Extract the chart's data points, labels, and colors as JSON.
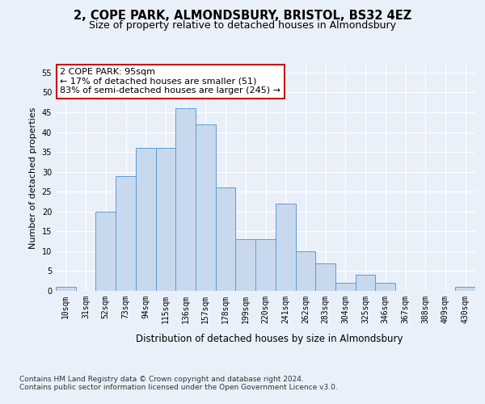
{
  "title1": "2, COPE PARK, ALMONDSBURY, BRISTOL, BS32 4EZ",
  "title2": "Size of property relative to detached houses in Almondsbury",
  "xlabel": "Distribution of detached houses by size in Almondsbury",
  "ylabel": "Number of detached properties",
  "footnote": "Contains HM Land Registry data © Crown copyright and database right 2024.\nContains public sector information licensed under the Open Government Licence v3.0.",
  "annotation_line1": "2 COPE PARK: 95sqm",
  "annotation_line2": "← 17% of detached houses are smaller (51)",
  "annotation_line3": "83% of semi-detached houses are larger (245) →",
  "bar_labels": [
    "10sqm",
    "31sqm",
    "52sqm",
    "73sqm",
    "94sqm",
    "115sqm",
    "136sqm",
    "157sqm",
    "178sqm",
    "199sqm",
    "220sqm",
    "241sqm",
    "262sqm",
    "283sqm",
    "304sqm",
    "325sqm",
    "346sqm",
    "367sqm",
    "388sqm",
    "409sqm",
    "430sqm"
  ],
  "bar_values": [
    1,
    0,
    20,
    29,
    36,
    36,
    46,
    42,
    26,
    13,
    13,
    22,
    10,
    7,
    2,
    4,
    2,
    0,
    0,
    0,
    1
  ],
  "bar_color": "#c9d9ed",
  "bar_edge_color": "#5b9bd5",
  "ylim": [
    0,
    57
  ],
  "yticks": [
    0,
    5,
    10,
    15,
    20,
    25,
    30,
    35,
    40,
    45,
    50,
    55
  ],
  "bg_color": "#eaf0f9",
  "plot_bg_color": "#eaf0f9",
  "grid_color": "#ffffff",
  "annotation_box_color": "#ffffff",
  "annotation_box_edge": "#cc0000",
  "title1_fontsize": 10.5,
  "title2_fontsize": 9,
  "annotation_fontsize": 8,
  "axis_label_fontsize": 8.5,
  "ylabel_fontsize": 8,
  "tick_fontsize": 7,
  "footnote_fontsize": 6.5
}
